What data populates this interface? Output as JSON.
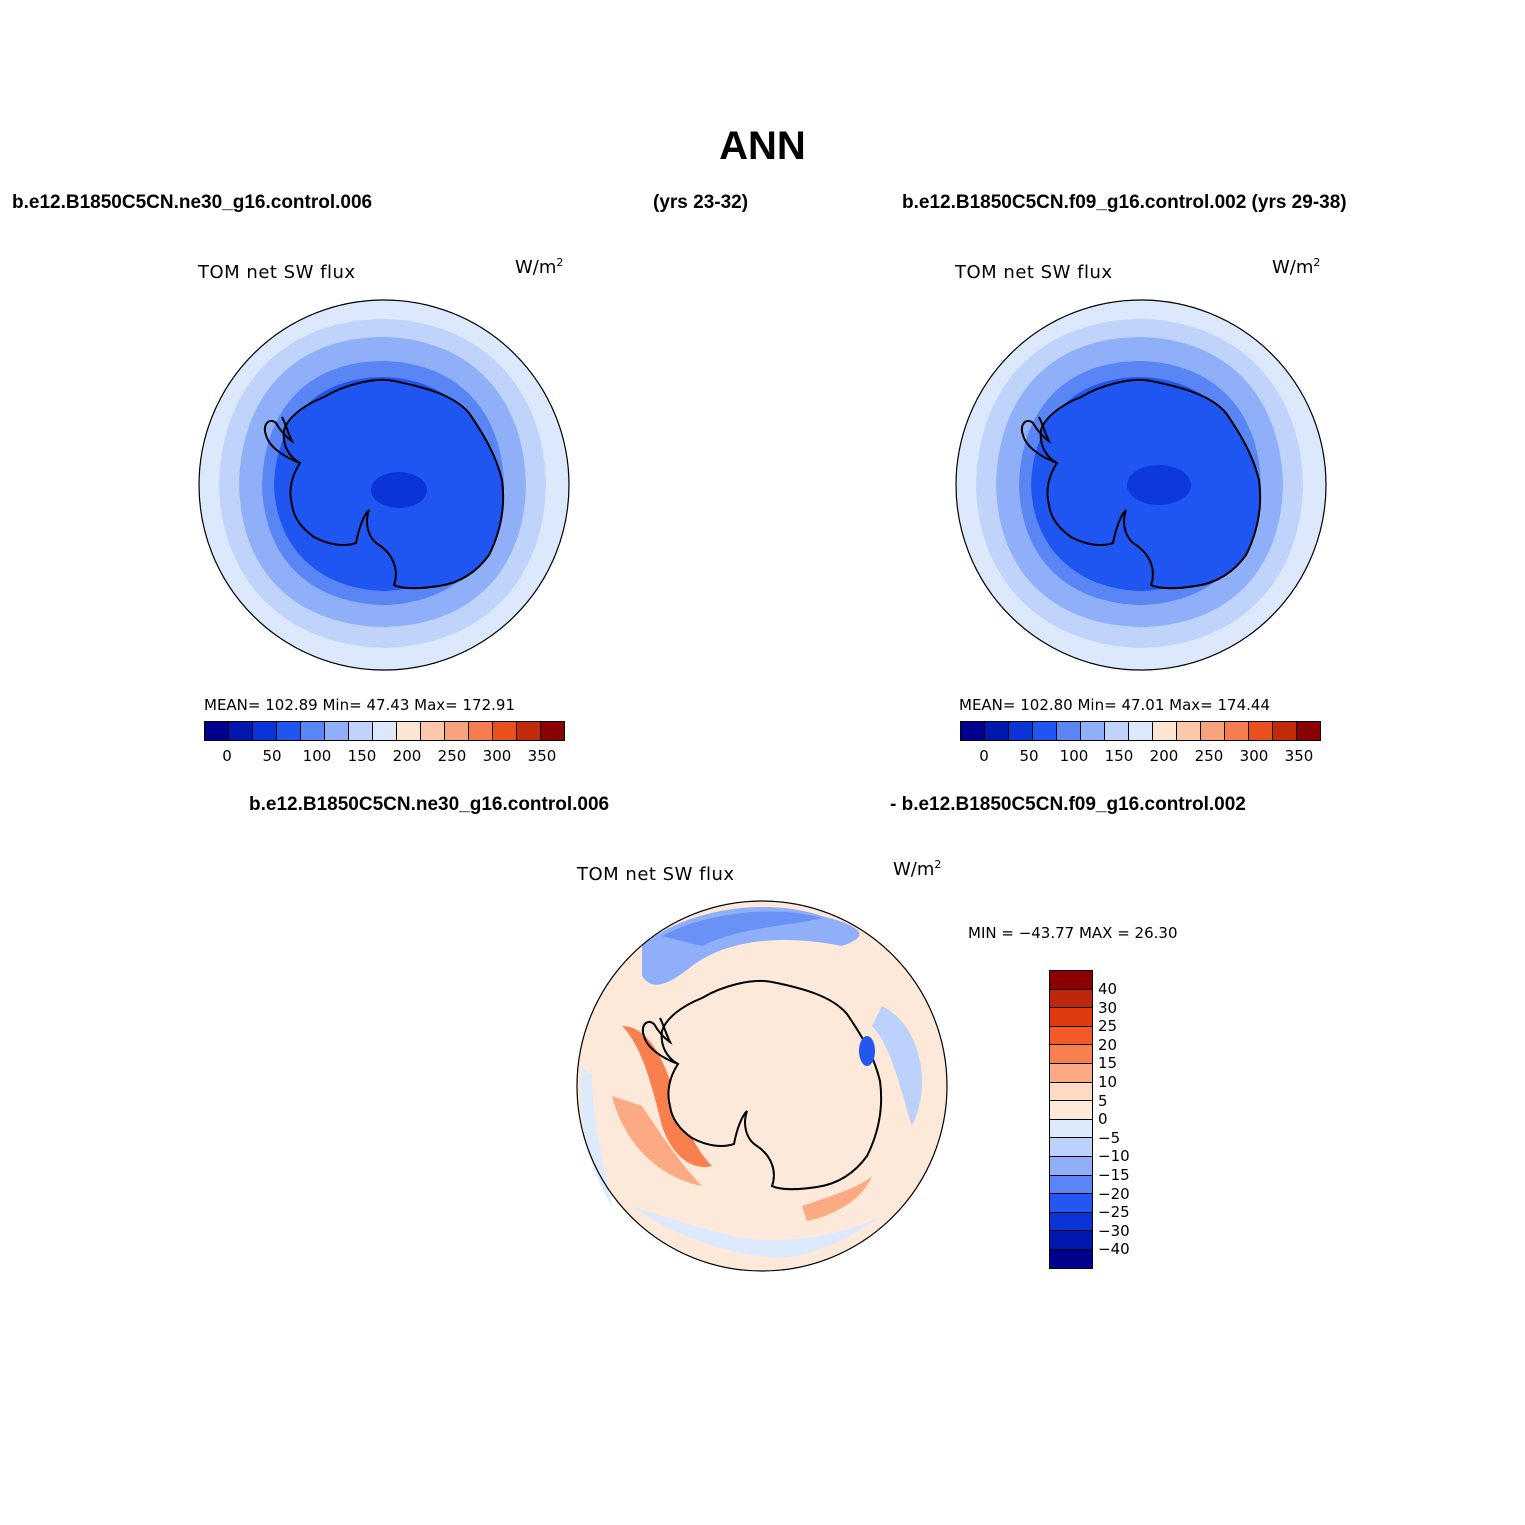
{
  "title": "ANN",
  "header": {
    "case1": "b.e12.B1850C5CN.ne30_g16.control.006",
    "years1": "(yrs 23-32)",
    "case2": "b.e12.B1850C5CN.f09_g16.control.002 (yrs 29-38)"
  },
  "diff_header": {
    "case1": "b.e12.B1850C5CN.ne30_g16.control.006",
    "case2": "- b.e12.B1850C5CN.f09_g16.control.002"
  },
  "panels": [
    {
      "variable": "TOM  net  SW  flux",
      "units_base": "W/m",
      "units_exp": "2",
      "stats": "MEAN=  102.89    Min=    47.43    Max=  172.91"
    },
    {
      "variable": "TOM  net  SW  flux",
      "units_base": "W/m",
      "units_exp": "2",
      "stats": "MEAN=  102.80    Min=    47.01    Max=  174.44"
    },
    {
      "variable": "TOM  net  SW  flux",
      "units_base": "W/m",
      "units_exp": "2",
      "stats": "MIN  =  −43.77  MAX  =    26.30"
    }
  ],
  "colorbar_abs": {
    "colors": [
      "#00008f",
      "#0018b0",
      "#0a34d8",
      "#1f55f0",
      "#5985f5",
      "#8fb0f8",
      "#c0d4fb",
      "#dce9fc",
      "#fde5d2",
      "#fcc8aa",
      "#f7a47e",
      "#f47c4e",
      "#e9501e",
      "#c22b0a",
      "#8b0000"
    ],
    "labels": [
      "0",
      "50",
      "100",
      "150",
      "200",
      "250",
      "300",
      "350"
    ]
  },
  "colorbar_diff": {
    "colors": [
      "#8b0000",
      "#be260b",
      "#e03a0f",
      "#f45a25",
      "#f9804e",
      "#fcaa84",
      "#fddcc3",
      "#fde9d9",
      "#dde9fc",
      "#bcd1fb",
      "#8fb0f8",
      "#5a86f5",
      "#2457f0",
      "#0a34d8",
      "#0018b0",
      "#00008f"
    ],
    "labels": [
      "40",
      "30",
      "25",
      "20",
      "15",
      "10",
      "5",
      "0",
      "−5",
      "−10",
      "−15",
      "−20",
      "−25",
      "−30",
      "−40"
    ]
  },
  "chart_data": [
    {
      "type": "map",
      "projection": "south-polar stereographic",
      "case": "b.e12.B1850C5CN.ne30_g16.control.006",
      "years": "yrs 23-32",
      "variable": "TOM net SW flux",
      "units": "W/m2",
      "mean": 102.89,
      "min": 47.43,
      "max": 172.91,
      "contour_levels": [
        0,
        25,
        50,
        75,
        100,
        125,
        150,
        175,
        200,
        225,
        250,
        275,
        300,
        325,
        350
      ]
    },
    {
      "type": "map",
      "projection": "south-polar stereographic",
      "case": "b.e12.B1850C5CN.f09_g16.control.002",
      "years": "yrs 29-38",
      "variable": "TOM net SW flux",
      "units": "W/m2",
      "mean": 102.8,
      "min": 47.01,
      "max": 174.44,
      "contour_levels": [
        0,
        25,
        50,
        75,
        100,
        125,
        150,
        175,
        200,
        225,
        250,
        275,
        300,
        325,
        350
      ]
    },
    {
      "type": "map",
      "projection": "south-polar stereographic",
      "variable": "TOM net SW flux",
      "units": "W/m2",
      "min": -43.77,
      "max": 26.3,
      "contour_levels": [
        -40,
        -30,
        -25,
        -20,
        -15,
        -10,
        -5,
        0,
        5,
        10,
        15,
        20,
        25,
        30,
        40
      ]
    }
  ]
}
